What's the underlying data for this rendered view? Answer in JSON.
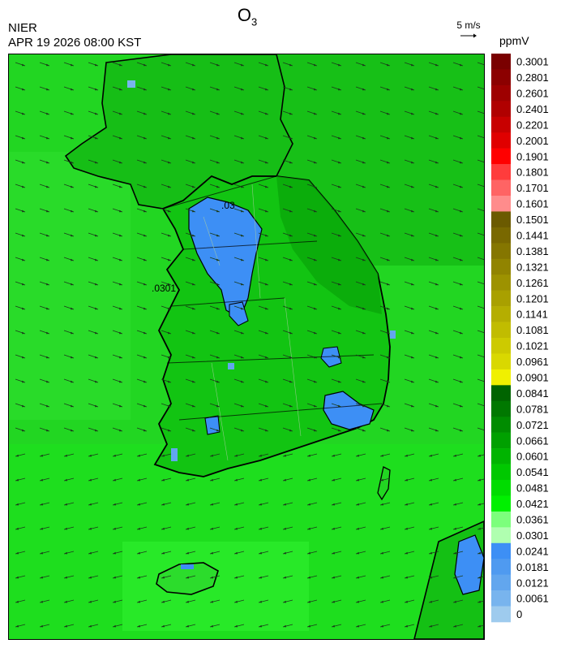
{
  "header": {
    "agency": "NIER",
    "datetime": "APR 19 2026 08:00 KST",
    "species_main": "O",
    "species_sub": "3",
    "wind_reference": "5 m/s",
    "unit": "ppmV"
  },
  "map": {
    "contour_labels": [
      ".03",
      ".0301"
    ]
  },
  "colorbar": {
    "labels": [
      "0.3001",
      "0.2801",
      "0.2601",
      "0.2401",
      "0.2201",
      "0.2001",
      "0.1901",
      "0.1801",
      "0.1701",
      "0.1601",
      "0.1501",
      "0.1441",
      "0.1381",
      "0.1321",
      "0.1261",
      "0.1201",
      "0.1141",
      "0.1081",
      "0.1021",
      "0.0961",
      "0.0901",
      "0.0841",
      "0.0781",
      "0.0721",
      "0.0661",
      "0.0601",
      "0.0541",
      "0.0481",
      "0.0421",
      "0.0361",
      "0.0301",
      "0.0241",
      "0.0181",
      "0.0121",
      "0.0061",
      "0"
    ],
    "colors": [
      "#7a0000",
      "#8c0000",
      "#9e0000",
      "#b00000",
      "#c80000",
      "#e00000",
      "#ff0000",
      "#ff3c3c",
      "#ff6464",
      "#ff8c8c",
      "#6b5a00",
      "#796800",
      "#857600",
      "#918400",
      "#9d9200",
      "#a9a000",
      "#b5ae00",
      "#c1bc00",
      "#cdca00",
      "#d9d800",
      "#f0f000",
      "#006400",
      "#007800",
      "#008c00",
      "#00a000",
      "#00b400",
      "#00c800",
      "#00dc00",
      "#00f000",
      "#7cff7c",
      "#b0ffb0",
      "#3d8ff5",
      "#4f9af0",
      "#62a6ee",
      "#78b4ee",
      "#9ecbee"
    ]
  }
}
